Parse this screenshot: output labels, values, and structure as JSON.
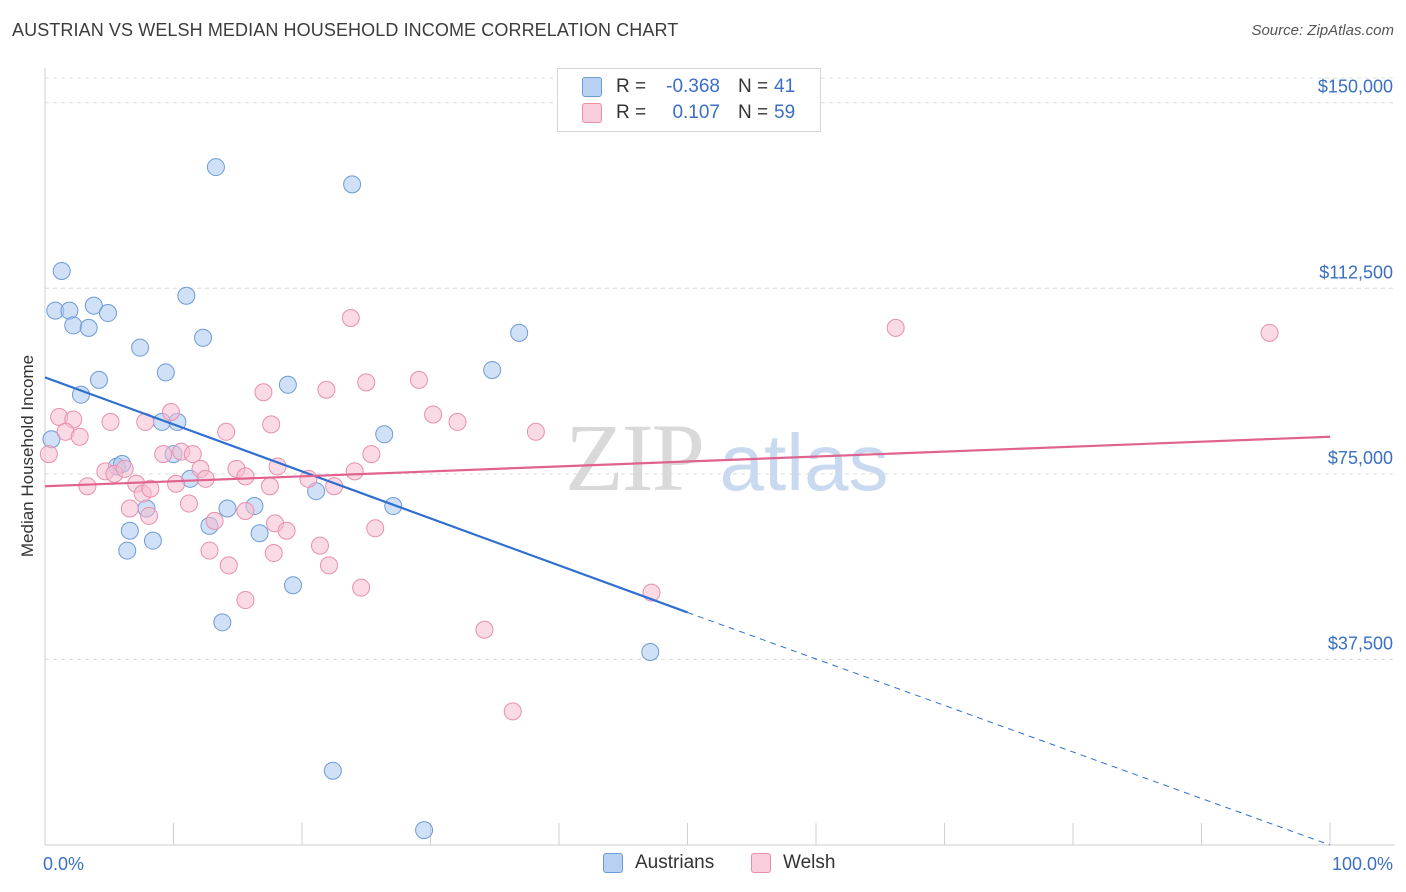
{
  "header": {
    "title": "AUSTRIAN VS WELSH MEDIAN HOUSEHOLD INCOME CORRELATION CHART",
    "source": "Source: ZipAtlas.com"
  },
  "watermark": {
    "zip": "ZIP",
    "atlas": "atlas"
  },
  "legend": {
    "austrians": {
      "r_label": "R =",
      "r_value": "-0.368",
      "n_label": "N =",
      "n_value": "41"
    },
    "welsh": {
      "r_label": "R =",
      "r_value": "0.107",
      "n_label": "N =",
      "n_value": "59"
    }
  },
  "colors": {
    "austrians_fill": "#a9c6ee",
    "austrians_stroke": "#6d9bd8",
    "austrians_line": "#2f6fd0",
    "welsh_fill": "#f6bcd0",
    "welsh_stroke": "#e88fae",
    "welsh_line": "#e0638f",
    "axis_value": "#3a6fc4"
  },
  "chart_data": {
    "type": "scatter",
    "title": "AUSTRIAN VS WELSH MEDIAN HOUSEHOLD INCOME CORRELATION CHART",
    "xlabel": "",
    "ylabel": "Median Household Income",
    "xlim": [
      0,
      100
    ],
    "ylim": [
      0,
      155000
    ],
    "x_tick_labels": [
      "0.0%",
      "100.0%"
    ],
    "y_ticks": [
      {
        "value": 37500,
        "label": "$37,500"
      },
      {
        "value": 75000,
        "label": "$75,000"
      },
      {
        "value": 112500,
        "label": "$112,500"
      },
      {
        "value": 150000,
        "label": "$150,000"
      }
    ],
    "grid": true,
    "series": [
      {
        "name": "Austrians",
        "points": [
          [
            1.3,
            116000
          ],
          [
            0.8,
            108000
          ],
          [
            1.9,
            108000
          ],
          [
            3.8,
            109000
          ],
          [
            4.9,
            107500
          ],
          [
            2.2,
            105000
          ],
          [
            3.4,
            104500
          ],
          [
            13.3,
            137000
          ],
          [
            23.9,
            133500
          ],
          [
            11,
            111000
          ],
          [
            12.3,
            102500
          ],
          [
            36.9,
            103500
          ],
          [
            7.4,
            100500
          ],
          [
            4.2,
            94000
          ],
          [
            9.4,
            95500
          ],
          [
            18.9,
            93000
          ],
          [
            34.8,
            96000
          ],
          [
            2.8,
            91000
          ],
          [
            10.3,
            85500
          ],
          [
            26.4,
            83000
          ],
          [
            9.1,
            85500
          ],
          [
            10,
            79000
          ],
          [
            5.6,
            76500
          ],
          [
            6,
            77000
          ],
          [
            11.3,
            74000
          ],
          [
            21.1,
            71500
          ],
          [
            14.2,
            68000
          ],
          [
            16.3,
            68500
          ],
          [
            7.9,
            68000
          ],
          [
            27.1,
            68500
          ],
          [
            12.8,
            64500
          ],
          [
            6.6,
            63500
          ],
          [
            16.7,
            63000
          ],
          [
            8.4,
            61500
          ],
          [
            6.4,
            59500
          ],
          [
            19.3,
            52500
          ],
          [
            13.8,
            45000
          ],
          [
            47.1,
            39000
          ],
          [
            22.4,
            15000
          ],
          [
            29.5,
            3000
          ],
          [
            0.5,
            82000
          ]
        ]
      },
      {
        "name": "Welsh",
        "points": [
          [
            0.3,
            79000
          ],
          [
            1.1,
            86500
          ],
          [
            2.2,
            86000
          ],
          [
            1.6,
            83500
          ],
          [
            2.7,
            82500
          ],
          [
            5.1,
            85500
          ],
          [
            7.8,
            85500
          ],
          [
            9.8,
            87500
          ],
          [
            14.1,
            83500
          ],
          [
            17.6,
            85000
          ],
          [
            21.9,
            92000
          ],
          [
            23.8,
            106500
          ],
          [
            25,
            93500
          ],
          [
            29.1,
            94000
          ],
          [
            30.2,
            87000
          ],
          [
            32.1,
            85500
          ],
          [
            38.2,
            83500
          ],
          [
            66.2,
            104500
          ],
          [
            95.3,
            103500
          ],
          [
            17,
            91500
          ],
          [
            9.2,
            79000
          ],
          [
            10.6,
            79500
          ],
          [
            11.5,
            79000
          ],
          [
            12.1,
            76000
          ],
          [
            14.9,
            76000
          ],
          [
            17.5,
            72500
          ],
          [
            18.1,
            76500
          ],
          [
            24.1,
            75500
          ],
          [
            25.4,
            79000
          ],
          [
            4.7,
            75500
          ],
          [
            5.4,
            75000
          ],
          [
            6.2,
            76000
          ],
          [
            3.3,
            72500
          ],
          [
            7.1,
            73000
          ],
          [
            7.6,
            71000
          ],
          [
            8.2,
            72000
          ],
          [
            10.2,
            73000
          ],
          [
            15.6,
            74500
          ],
          [
            20.5,
            74000
          ],
          [
            22.5,
            72500
          ],
          [
            12.5,
            74000
          ],
          [
            6.6,
            68000
          ],
          [
            8.1,
            66500
          ],
          [
            11.2,
            69000
          ],
          [
            13.2,
            65500
          ],
          [
            15.6,
            67500
          ],
          [
            17.9,
            65000
          ],
          [
            18.8,
            63500
          ],
          [
            21.4,
            60500
          ],
          [
            25.7,
            64000
          ],
          [
            12.8,
            59500
          ],
          [
            14.3,
            56500
          ],
          [
            17.8,
            59000
          ],
          [
            22.1,
            56500
          ],
          [
            24.6,
            52000
          ],
          [
            15.6,
            49500
          ],
          [
            47.2,
            51000
          ],
          [
            34.2,
            43500
          ],
          [
            36.4,
            27000
          ]
        ]
      }
    ],
    "trendlines": [
      {
        "series": "Austrians",
        "x_start": 0,
        "y_start": 94500,
        "x_solid_end": 50,
        "y_solid_end": 47000,
        "x_end": 100,
        "y_end": 0,
        "dashed_after_solid_end": true
      },
      {
        "series": "Welsh",
        "x_start": 0,
        "y_start": 72500,
        "x_end": 100,
        "y_end": 82500
      }
    ]
  },
  "bottom_legend": {
    "austrians": "Austrians",
    "welsh": "Welsh"
  }
}
